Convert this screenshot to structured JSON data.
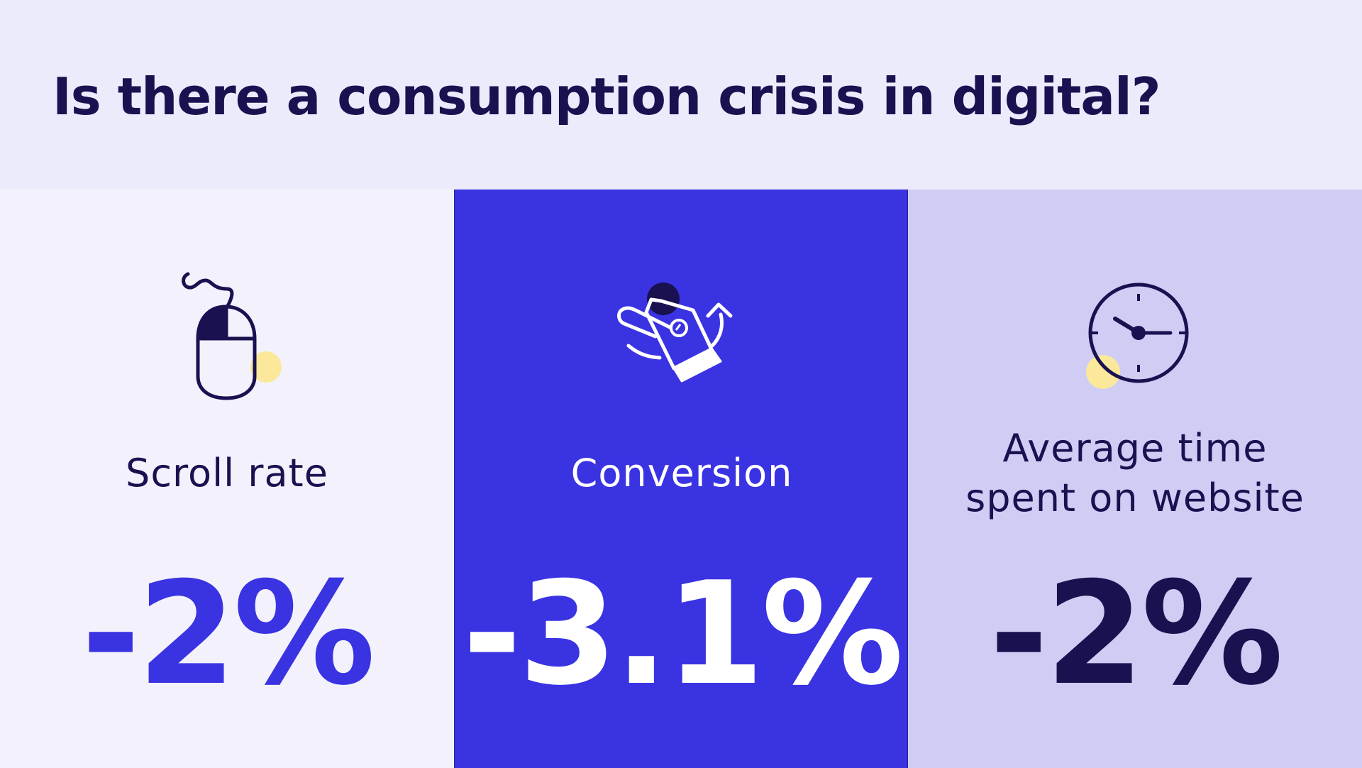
{
  "slide": {
    "title": "Is there a consumption crisis in digital?"
  },
  "colors": {
    "header_bg": "#ebebfb",
    "dark_navy": "#1a1150",
    "accent_blue": "#3a33e2",
    "lavender": "#d0cdf5",
    "light_panel": "#f3f2fc",
    "highlight_yellow": "#fbe89a"
  },
  "metrics": [
    {
      "label": "Scroll rate",
      "value": "-2%",
      "icon": "computer-mouse-icon"
    },
    {
      "label": "Conversion",
      "value": "-3.1%",
      "icon": "shopping-tag-icon"
    },
    {
      "label_line1": "Average time",
      "label_line2": "spent on website",
      "value": "-2%",
      "icon": "clock-icon"
    }
  ]
}
